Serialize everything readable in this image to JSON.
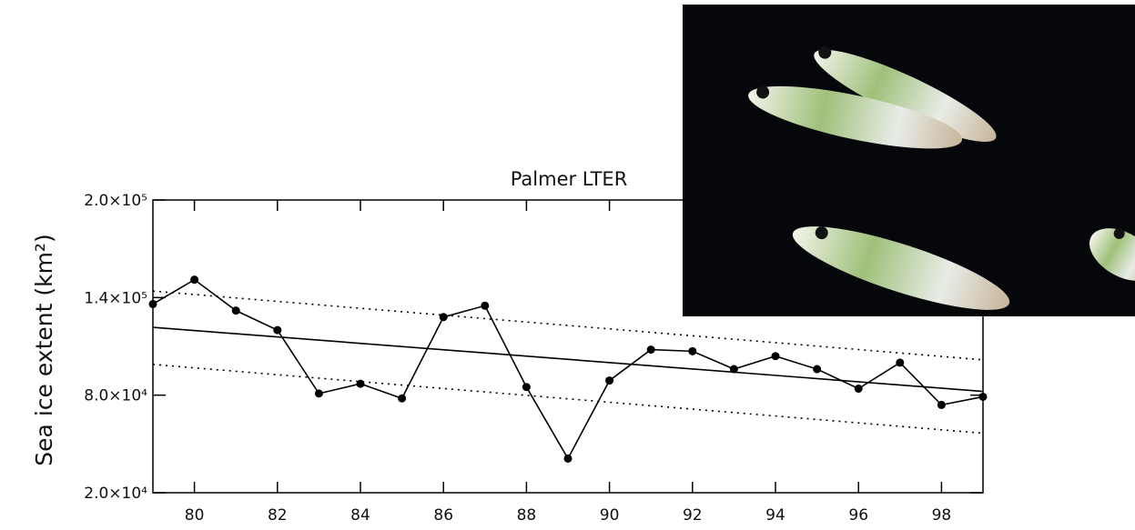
{
  "chart_data": {
    "type": "line",
    "title": "Palmer LTER",
    "y_label": "Sea ice extent (km²)",
    "x": [
      79,
      80,
      81,
      82,
      83,
      84,
      85,
      86,
      87,
      88,
      89,
      90,
      91,
      92,
      93,
      94,
      95,
      96,
      97,
      98,
      99
    ],
    "series": [
      {
        "color": "#000000",
        "values": [
          136000,
          151000,
          132000,
          120000,
          81000,
          87000,
          78000,
          128000,
          135000,
          85000,
          41000,
          89000,
          108000,
          107000,
          96000,
          104000,
          96000,
          84000,
          100000,
          74000,
          79000
        ]
      }
    ],
    "fit": {
      "x": [
        79,
        99
      ],
      "values": [
        121700,
        82300
      ]
    },
    "upper_bound": {
      "x": [
        79,
        99
      ],
      "values": [
        144000,
        101700
      ]
    },
    "lower_bound": {
      "x": [
        79,
        99
      ],
      "values": [
        98900,
        56600
      ]
    },
    "xlim": [
      79,
      99
    ],
    "xticks": [
      80,
      82,
      84,
      86,
      88,
      90,
      92,
      94,
      96,
      98
    ],
    "ylim": [
      20000,
      200000
    ],
    "yticks": [
      {
        "value": 20000,
        "label": "2.0×10⁴"
      },
      {
        "value": 80000,
        "label": "8.0×10⁴"
      },
      {
        "value": 140000,
        "label": "1.4×10⁵"
      },
      {
        "value": 200000,
        "label": "2.0×10⁵"
      }
    ],
    "grid": false
  }
}
